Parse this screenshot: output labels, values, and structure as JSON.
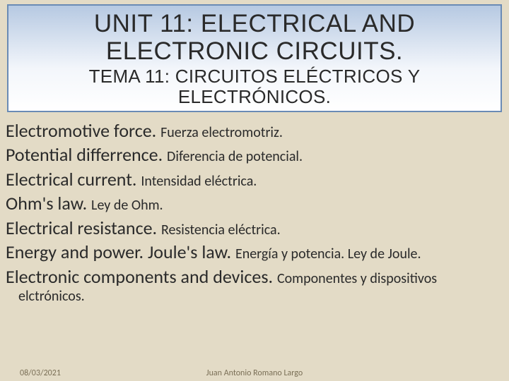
{
  "title": {
    "main": "UNIT 11: ELECTRICAL AND ELECTRONIC CIRCUITS.",
    "sub": "TEMA 11: CIRCUITOS ELÉCTRICOS Y ELECTRÓNICOS.",
    "border_color": "#6a8bb5",
    "bg_gradient_top": "#b6c9e2",
    "bg_gradient_bottom": "#ffffff",
    "main_fontsize": 35,
    "sub_fontsize": 26,
    "text_color": "#2a2a2a"
  },
  "background_color": "#e3dbc6",
  "list": {
    "en_fontsize": 26,
    "es_fontsize": 20,
    "text_color": "#2a2a2a",
    "items": [
      {
        "en": "Electromotive force. ",
        "es": "Fuerza electromotriz."
      },
      {
        "en": "Potential differrence. ",
        "es": "Diferencia de potencial."
      },
      {
        "en": "Electrical current. ",
        "es": "Intensidad eléctrica."
      },
      {
        "en": "Ohm's law. ",
        "es": "Ley de Ohm."
      },
      {
        "en": "Electrical resistance. ",
        "es": "Resistencia eléctrica."
      },
      {
        "en": "Energy and power. Joule's law. ",
        "es": "Energía y potencia. Ley de Joule."
      },
      {
        "en": "Electronic components and devices. ",
        "es": "Componentes y dispositivos",
        "es_cont": "elctrónicos."
      }
    ]
  },
  "footer": {
    "date": "08/03/2021",
    "author": "Juan Antonio Romano Largo",
    "fontsize": 12,
    "color": "#7a6f56"
  }
}
